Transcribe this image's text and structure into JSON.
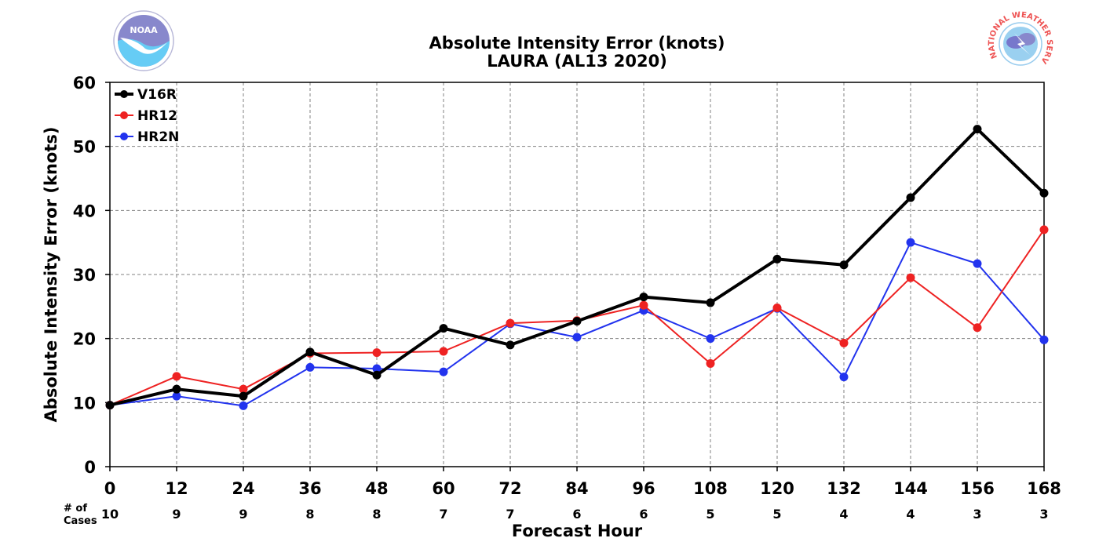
{
  "chart_data": {
    "type": "line",
    "title": "Absolute Intensity Error (knots)",
    "subtitle": "LAURA (AL13 2020)",
    "xlabel": "Forecast Hour",
    "ylabel": "Absolute Intensity Error (knots)",
    "x": [
      0,
      12,
      24,
      36,
      48,
      60,
      72,
      84,
      96,
      108,
      120,
      132,
      144,
      156,
      168
    ],
    "xlim": [
      0,
      168
    ],
    "ylim": [
      0,
      60
    ],
    "yticks": [
      0,
      10,
      20,
      30,
      40,
      50,
      60
    ],
    "grid": true,
    "legend_position": "top-left",
    "cases_label": [
      "# of",
      "Cases"
    ],
    "cases": [
      10,
      9,
      9,
      8,
      8,
      7,
      7,
      6,
      6,
      5,
      5,
      4,
      4,
      3,
      3
    ],
    "series": [
      {
        "name": "V16R",
        "color": "#000000",
        "line_width": "thick",
        "values": [
          9.6,
          12.1,
          11.0,
          17.9,
          14.3,
          21.6,
          19.0,
          22.7,
          26.5,
          25.6,
          32.4,
          31.5,
          42.0,
          52.7,
          42.7
        ]
      },
      {
        "name": "HR12",
        "color": "#ee2222",
        "line_width": "thin",
        "values": [
          9.6,
          14.1,
          12.1,
          17.7,
          17.8,
          18.0,
          22.4,
          22.8,
          25.2,
          16.1,
          24.8,
          19.3,
          29.5,
          21.7,
          37.0
        ]
      },
      {
        "name": "HR2N",
        "color": "#2233ee",
        "line_width": "thin",
        "values": [
          9.6,
          11.0,
          9.5,
          15.5,
          15.3,
          14.8,
          22.3,
          20.2,
          24.4,
          20.0,
          24.7,
          14.0,
          35.0,
          31.7,
          19.8
        ]
      }
    ]
  },
  "logos": {
    "left": {
      "name": "noaa-logo",
      "text": "NOAA"
    },
    "right": {
      "name": "nws-logo",
      "text": "NATIONAL WEATHER SERVICE"
    }
  }
}
